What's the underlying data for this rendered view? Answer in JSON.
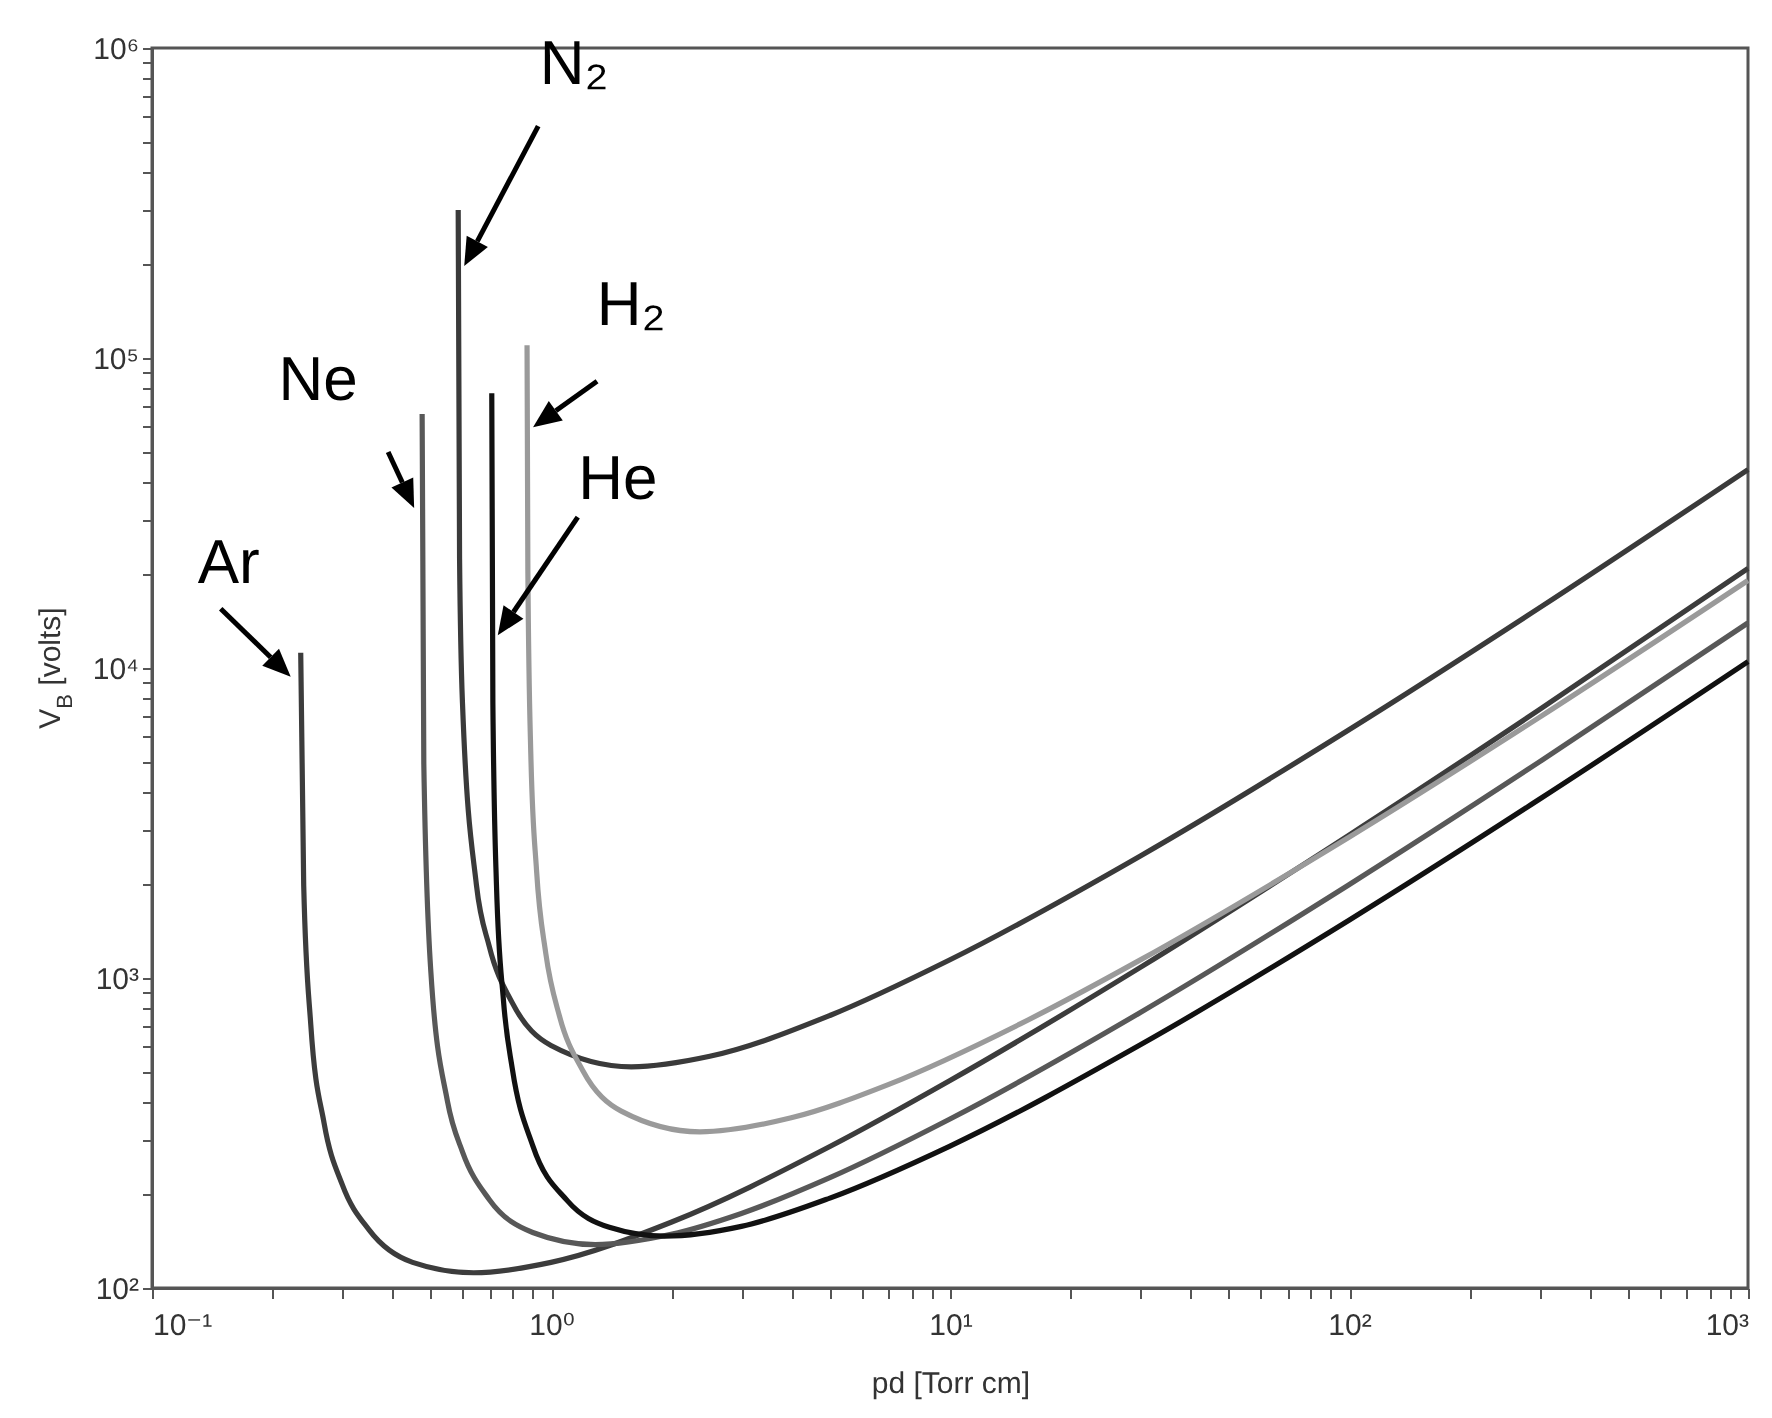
{
  "chart_data": {
    "type": "line",
    "xlabel": "pd [Torr cm]",
    "ylabel": "V$_{B}$ [volts]",
    "log": "xy",
    "grid": false,
    "marker": "none",
    "line_style": "solid",
    "xlim": [
      0.1,
      1000
    ],
    "ylim": [
      100,
      1000000
    ],
    "xticks": [
      {
        "value": 0.1,
        "label": "10⁻¹"
      },
      {
        "value": 0.2,
        "label": null
      },
      {
        "value": 0.3,
        "label": null
      },
      {
        "value": 0.4,
        "label": null
      },
      {
        "value": 0.5,
        "label": null
      },
      {
        "value": 0.6,
        "label": null
      },
      {
        "value": 0.7,
        "label": null
      },
      {
        "value": 0.8,
        "label": null
      },
      {
        "value": 0.9,
        "label": null
      },
      {
        "value": 1,
        "label": "10⁰"
      },
      {
        "value": 2,
        "label": null
      },
      {
        "value": 3,
        "label": null
      },
      {
        "value": 4,
        "label": null
      },
      {
        "value": 5,
        "label": null
      },
      {
        "value": 6,
        "label": null
      },
      {
        "value": 7,
        "label": null
      },
      {
        "value": 8,
        "label": null
      },
      {
        "value": 9,
        "label": null
      },
      {
        "value": 10,
        "label": "10¹"
      },
      {
        "value": 20,
        "label": null
      },
      {
        "value": 30,
        "label": null
      },
      {
        "value": 40,
        "label": null
      },
      {
        "value": 50,
        "label": null
      },
      {
        "value": 60,
        "label": null
      },
      {
        "value": 70,
        "label": null
      },
      {
        "value": 80,
        "label": null
      },
      {
        "value": 90,
        "label": null
      },
      {
        "value": 100,
        "label": "10²"
      },
      {
        "value": 200,
        "label": null
      },
      {
        "value": 300,
        "label": null
      },
      {
        "value": 400,
        "label": null
      },
      {
        "value": 500,
        "label": null
      },
      {
        "value": 600,
        "label": null
      },
      {
        "value": 700,
        "label": null
      },
      {
        "value": 800,
        "label": null
      },
      {
        "value": 900,
        "label": null
      },
      {
        "value": 1000,
        "label": "10³"
      }
    ],
    "yticks": [
      {
        "value": 100,
        "label": "10²"
      },
      {
        "value": 200,
        "label": null
      },
      {
        "value": 300,
        "label": null
      },
      {
        "value": 400,
        "label": null
      },
      {
        "value": 500,
        "label": null
      },
      {
        "value": 600,
        "label": null
      },
      {
        "value": 700,
        "label": null
      },
      {
        "value": 800,
        "label": null
      },
      {
        "value": 900,
        "label": null
      },
      {
        "value": 1000,
        "label": "10³"
      },
      {
        "value": 2000,
        "label": null
      },
      {
        "value": 3000,
        "label": null
      },
      {
        "value": 4000,
        "label": null
      },
      {
        "value": 5000,
        "label": null
      },
      {
        "value": 6000,
        "label": null
      },
      {
        "value": 7000,
        "label": null
      },
      {
        "value": 8000,
        "label": null
      },
      {
        "value": 9000,
        "label": null
      },
      {
        "value": 10000,
        "label": "10⁴"
      },
      {
        "value": 20000,
        "label": null
      },
      {
        "value": 30000,
        "label": null
      },
      {
        "value": 40000,
        "label": null
      },
      {
        "value": 50000,
        "label": null
      },
      {
        "value": 60000,
        "label": null
      },
      {
        "value": 70000,
        "label": null
      },
      {
        "value": 80000,
        "label": null
      },
      {
        "value": 90000,
        "label": null
      },
      {
        "value": 100000,
        "label": "10⁵"
      },
      {
        "value": 200000,
        "label": null
      },
      {
        "value": 300000,
        "label": null
      },
      {
        "value": 400000,
        "label": null
      },
      {
        "value": 500000,
        "label": null
      },
      {
        "value": 600000,
        "label": null
      },
      {
        "value": 700000,
        "label": null
      },
      {
        "value": 800000,
        "label": null
      },
      {
        "value": 900000,
        "label": null
      },
      {
        "value": 1000000,
        "label": "10⁶"
      }
    ],
    "series": [
      {
        "name": "Ar",
        "color": "#3c3c3c",
        "x": [
          0.2359,
          0.24,
          0.25,
          0.27,
          0.3,
          0.35,
          0.45,
          0.64,
          1,
          2,
          5,
          10,
          30,
          100,
          300,
          1000
        ],
        "values": [
          11200,
          1990,
          707,
          340,
          215,
          154,
          121,
          112,
          121,
          163,
          286,
          467,
          1082,
          2891,
          7341,
          20943
        ]
      },
      {
        "name": "Ne",
        "color": "#585858",
        "x": [
          0.47537,
          0.48,
          0.5,
          0.55,
          0.6,
          0.7,
          0.9,
          1.29,
          2,
          3,
          5,
          10,
          30,
          100,
          300,
          1000
        ],
        "values": [
          66000,
          4905,
          1043,
          401,
          275,
          193,
          151,
          138,
          149,
          174,
          227,
          351,
          774,
          2000,
          4978,
          13983
        ]
      },
      {
        "name": "N₂",
        "color": "#3a3a3a",
        "x": [
          0.58537,
          0.59,
          0.6,
          0.65,
          0.7,
          0.8,
          1,
          1.59,
          2.5,
          5,
          10,
          30,
          100,
          300,
          1000
        ],
        "values": [
          300000,
          22530,
          7701,
          2005,
          1267,
          831,
          606,
          517,
          559,
          757,
          1145,
          2476,
          6322,
          15625,
          43659
        ]
      },
      {
        "name": "He",
        "color": "#111111",
        "x": [
          0.7105,
          0.715,
          0.73,
          0.76,
          0.8,
          0.9,
          1.1,
          1.4,
          1.93,
          3,
          5,
          10,
          30,
          100,
          300,
          1000
        ],
        "values": [
          77000,
          7741,
          1997,
          848,
          509,
          288,
          191,
          157,
          147,
          158,
          195,
          287,
          609,
          1536,
          3771,
          10483
        ]
      },
      {
        "name": "H₂",
        "color": "#9a9a9a",
        "x": [
          0.8709,
          0.875,
          0.89,
          0.92,
          0.97,
          1.05,
          1.2,
          1.5,
          2.36,
          4,
          7,
          15,
          30,
          100,
          300,
          1000
        ],
        "values": [
          110000,
          20610,
          5286,
          2222,
          1204,
          754,
          504,
          372,
          319,
          354,
          453,
          711,
          1144,
          2846,
          6931,
          19157
        ]
      }
    ]
  }
}
